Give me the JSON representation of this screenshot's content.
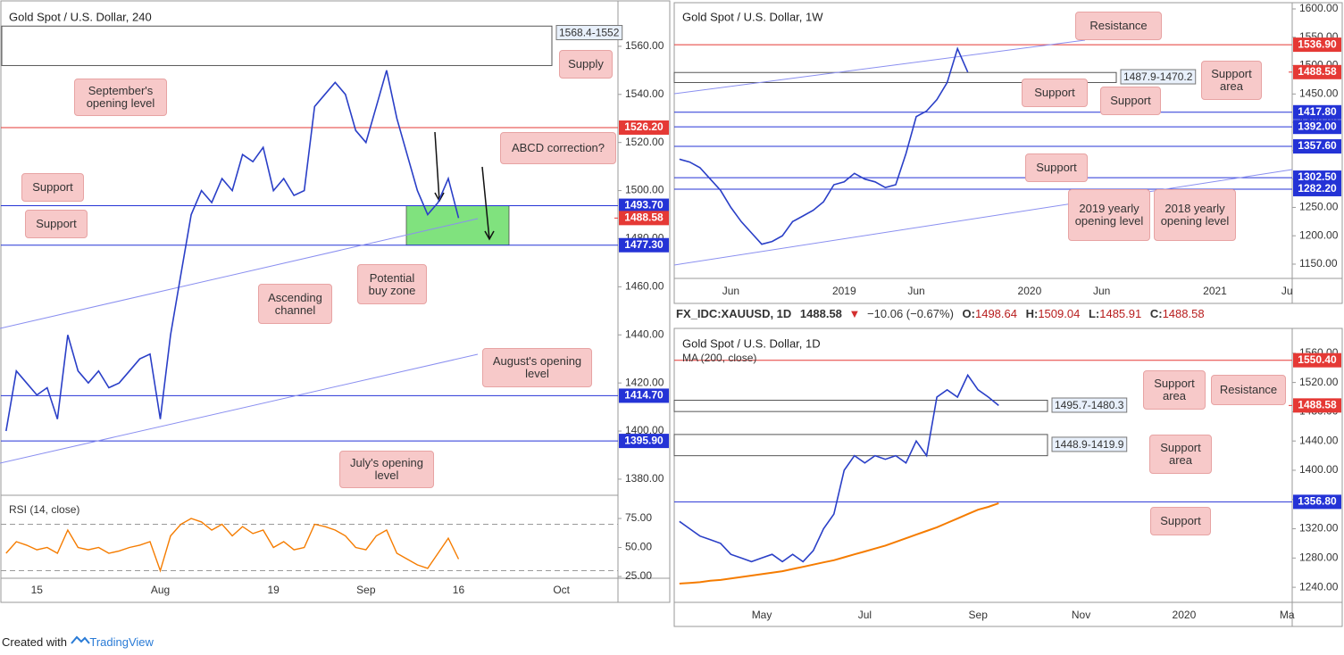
{
  "chart_data": [
    {
      "type": "line",
      "title": "Gold Spot / U.S. Dollar, 240",
      "color": "#2a3fc7",
      "categories": [
        null,
        null,
        null,
        "15",
        null,
        null,
        null,
        null,
        null,
        null,
        null,
        null,
        null,
        null,
        null,
        "Aug",
        null,
        null,
        null,
        null,
        null,
        null,
        null,
        null,
        null,
        null,
        "19",
        null,
        null,
        null,
        null,
        null,
        null,
        null,
        null,
        "Sep",
        null,
        null,
        null,
        null,
        null,
        null,
        null,
        null,
        "16",
        null,
        null,
        null,
        null,
        null,
        null,
        null,
        null,
        null,
        "Oct",
        null,
        null,
        null,
        null,
        null
      ],
      "values": [
        1400,
        1425,
        1420,
        1415,
        1418,
        1405,
        1440,
        1425,
        1420,
        1425,
        1418,
        1420,
        1425,
        1430,
        1432,
        1405,
        1440,
        1465,
        1490,
        1500,
        1495,
        1505,
        1500,
        1515,
        1512,
        1518,
        1500,
        1505,
        1498,
        1500,
        1535,
        1540,
        1545,
        1540,
        1525,
        1520,
        1535,
        1550,
        1530,
        1515,
        1500,
        1490,
        1495,
        1505,
        1488.58,
        null,
        null,
        null,
        null,
        null,
        null,
        null,
        null,
        null,
        null,
        null,
        null,
        null,
        null,
        null
      ],
      "ylim": [
        1373.3,
        1577.4
      ],
      "yticks": [
        {
          "value": 1380,
          "label": "1380.00"
        },
        {
          "value": 1400,
          "label": "1400.00"
        },
        {
          "value": 1420,
          "label": "1420.00"
        },
        {
          "value": 1440,
          "label": "1440.00"
        },
        {
          "value": 1460,
          "label": "1460.00"
        },
        {
          "value": 1480,
          "label": "1480.00"
        },
        {
          "value": 1500,
          "label": "1500.00"
        },
        {
          "value": 1520,
          "label": "1520.00"
        },
        {
          "value": 1540,
          "label": "1540.00"
        },
        {
          "value": 1560,
          "label": "1560.00"
        }
      ],
      "levels": [
        {
          "value": 1526.2,
          "label": "1526.20",
          "color": "#e53935"
        },
        {
          "value": 1493.7,
          "label": "1493.70",
          "color": "#2433d6"
        },
        {
          "value": 1477.3,
          "label": "1477.30",
          "color": "#2433d6"
        },
        {
          "value": 1414.7,
          "label": "1414.70",
          "color": "#2433d6"
        },
        {
          "value": 1395.9,
          "label": "1395.90",
          "color": "#2433d6"
        }
      ],
      "price": {
        "value": 1488.58,
        "label": "1488.58",
        "color": "#e53935"
      },
      "zones": [
        {
          "from": 1552,
          "to": 1568.4,
          "label": "1568.4-1552"
        }
      ],
      "buy_zone": {
        "from": 1477.3,
        "to": 1493.7,
        "color": "#80e27e"
      },
      "annotations": [
        "Supply",
        "September's opening level",
        "Support",
        "Support",
        "ABCD correction?",
        "Potential buy zone",
        "Ascending channel",
        "August's opening level",
        "July's opening level"
      ],
      "rsi": {
        "title": "RSI (14, close)",
        "color": "#f57c00",
        "ylim": [
          23.5,
          95
        ],
        "yticks": [
          {
            "value": 25,
            "label": "25.00"
          },
          {
            "value": 50,
            "label": "50.00"
          },
          {
            "value": 75,
            "label": "75.00"
          }
        ],
        "band_lines": [
          30,
          70
        ],
        "values": [
          45,
          55,
          52,
          48,
          50,
          45,
          65,
          50,
          48,
          50,
          45,
          47,
          50,
          52,
          55,
          30,
          60,
          70,
          75,
          72,
          65,
          70,
          60,
          68,
          62,
          65,
          50,
          55,
          48,
          50,
          70,
          68,
          65,
          60,
          50,
          48,
          60,
          65,
          45,
          40,
          35,
          32,
          45,
          58,
          40,
          null,
          null,
          null,
          null,
          null,
          null,
          null,
          null,
          null,
          null,
          null,
          null,
          null,
          null,
          null
        ]
      }
    },
    {
      "type": "line",
      "title": "Gold Spot / U.S. Dollar, 1W",
      "color": "#2a3fc7",
      "categories": [
        null,
        null,
        null,
        null,
        null,
        "Jun",
        null,
        null,
        null,
        null,
        null,
        null,
        null,
        null,
        null,
        null,
        "2019",
        null,
        null,
        null,
        null,
        null,
        null,
        "Jun",
        null,
        null,
        null,
        null,
        null,
        null,
        null,
        null,
        null,
        null,
        "2020",
        null,
        null,
        null,
        null,
        null,
        null,
        "Jun",
        null,
        null,
        null,
        null,
        null,
        null,
        null,
        null,
        null,
        null,
        "2021",
        null,
        null,
        null,
        null,
        null,
        null,
        "Ju"
      ],
      "values": [
        1335,
        1330,
        1320,
        1300,
        1280,
        1250,
        1225,
        1205,
        1185,
        1190,
        1200,
        1225,
        1235,
        1245,
        1260,
        1290,
        1295,
        1310,
        1300,
        1295,
        1285,
        1290,
        1345,
        1410,
        1420,
        1440,
        1470,
        1530,
        1488.58,
        null,
        null,
        null,
        null,
        null,
        null,
        null,
        null,
        null,
        null,
        null,
        null,
        null,
        null,
        null,
        null,
        null,
        null,
        null,
        null,
        null,
        null,
        null,
        null,
        null,
        null,
        null,
        null,
        null,
        null,
        null
      ],
      "ylim": [
        1124.8,
        1611
      ],
      "yticks": [
        {
          "value": 1150,
          "label": "1150.00"
        },
        {
          "value": 1200,
          "label": "1200.00"
        },
        {
          "value": 1250,
          "label": "1250.00"
        },
        {
          "value": 1300,
          "label": "1300.00"
        },
        {
          "value": 1350,
          "label": "1350.00"
        },
        {
          "value": 1400,
          "label": "1400.00"
        },
        {
          "value": 1450,
          "label": "1450.00"
        },
        {
          "value": 1500,
          "label": "1500.00"
        },
        {
          "value": 1550,
          "label": "1550.00"
        },
        {
          "value": 1600,
          "label": "1600.00"
        }
      ],
      "levels": [
        {
          "value": 1536.9,
          "label": "1536.90",
          "color": "#e53935"
        },
        {
          "value": 1417.8,
          "label": "1417.80",
          "color": "#2433d6"
        },
        {
          "value": 1392,
          "label": "1392.00",
          "color": "#2433d6"
        },
        {
          "value": 1357.6,
          "label": "1357.60",
          "color": "#2433d6"
        },
        {
          "value": 1302.5,
          "label": "1302.50",
          "color": "#2433d6"
        },
        {
          "value": 1282.2,
          "label": "1282.20",
          "color": "#2433d6"
        }
      ],
      "price": {
        "value": 1488.58,
        "label": "1488.58",
        "color": "#e53935"
      },
      "zones": [
        {
          "from": 1470.2,
          "to": 1487.9,
          "label": "1487.9-1470.2"
        }
      ],
      "annotations": [
        "Resistance",
        "Support area",
        "Support",
        "Support",
        "Support",
        "2019 yearly opening level",
        "2018 yearly opening level"
      ]
    },
    {
      "type": "line",
      "title": "Gold Spot / U.S. Dollar, 1D",
      "color": "#2a3fc7",
      "categories": [
        null,
        null,
        null,
        null,
        null,
        null,
        null,
        null,
        "May",
        null,
        null,
        null,
        null,
        null,
        null,
        null,
        null,
        null,
        "Jul",
        null,
        null,
        null,
        null,
        null,
        null,
        null,
        null,
        null,
        null,
        "Sep",
        null,
        null,
        null,
        null,
        null,
        null,
        null,
        null,
        null,
        "Nov",
        null,
        null,
        null,
        null,
        null,
        null,
        null,
        null,
        null,
        "2020",
        null,
        null,
        null,
        null,
        null,
        null,
        null,
        null,
        null,
        "Ma"
      ],
      "values": [
        1330,
        1320,
        1310,
        1305,
        1300,
        1285,
        1280,
        1275,
        1280,
        1285,
        1275,
        1285,
        1275,
        1290,
        1320,
        1340,
        1400,
        1420,
        1410,
        1420,
        1415,
        1420,
        1410,
        1440,
        1420,
        1500,
        1510,
        1500,
        1530,
        1510,
        1500,
        1488.58,
        null,
        null,
        null,
        null,
        null,
        null,
        null,
        null,
        null,
        null,
        null,
        null,
        null,
        null,
        null,
        null,
        null,
        null,
        null,
        null,
        null,
        null,
        null,
        null,
        null,
        null,
        null,
        null
      ],
      "overlays": [
        {
          "name": "MA (200, close)",
          "color": "#f57c00",
          "values": [
            1245,
            1246,
            1247,
            1249,
            1250,
            1252,
            1254,
            1256,
            1258,
            1260,
            1262,
            1265,
            1268,
            1271,
            1274,
            1277,
            1281,
            1285,
            1289,
            1293,
            1297,
            1302,
            1307,
            1312,
            1317,
            1322,
            1328,
            1334,
            1340,
            1346,
            1350,
            1355,
            null,
            null,
            null,
            null,
            null,
            null,
            null,
            null,
            null,
            null,
            null,
            null,
            null,
            null,
            null,
            null,
            null,
            null,
            null,
            null,
            null,
            null,
            null,
            null,
            null,
            null,
            null,
            null
          ]
        }
      ],
      "ylim": [
        1219.4,
        1591.5
      ],
      "yticks": [
        {
          "value": 1240,
          "label": "1240.00"
        },
        {
          "value": 1280,
          "label": "1280.00"
        },
        {
          "value": 1320,
          "label": "1320.00"
        },
        {
          "value": 1360,
          "label": "1360.00"
        },
        {
          "value": 1400,
          "label": "1400.00"
        },
        {
          "value": 1440,
          "label": "1440.00"
        },
        {
          "value": 1480,
          "label": "1480.00"
        },
        {
          "value": 1520,
          "label": "1520.00"
        },
        {
          "value": 1560,
          "label": "1560.00"
        }
      ],
      "levels": [
        {
          "value": 1550.4,
          "label": "1550.40",
          "color": "#e53935"
        },
        {
          "value": 1356.8,
          "label": "1356.80",
          "color": "#2433d6"
        }
      ],
      "price": {
        "value": 1488.58,
        "label": "1488.58",
        "color": "#e53935"
      },
      "zones": [
        {
          "from": 1480.3,
          "to": 1495.7,
          "label": "1495.7-1480.3"
        },
        {
          "from": 1419.9,
          "to": 1448.9,
          "label": "1448.9-1419.9"
        }
      ],
      "annotations": [
        "Resistance",
        "Support area",
        "Support area",
        "Support"
      ]
    }
  ],
  "header": {
    "symbol": "FX_IDC:XAUUSD, 1D",
    "last": "1488.58",
    "arrow": "▼",
    "change": "−10.06 (−0.67%)",
    "ohlc": [
      {
        "label": "O:",
        "value": "1498.64"
      },
      {
        "label": "H:",
        "value": "1509.04"
      },
      {
        "label": "L:",
        "value": "1485.91"
      },
      {
        "label": "C:",
        "value": "1488.58"
      }
    ]
  },
  "footer": {
    "text": "Created with",
    "brand": "TradingView"
  }
}
